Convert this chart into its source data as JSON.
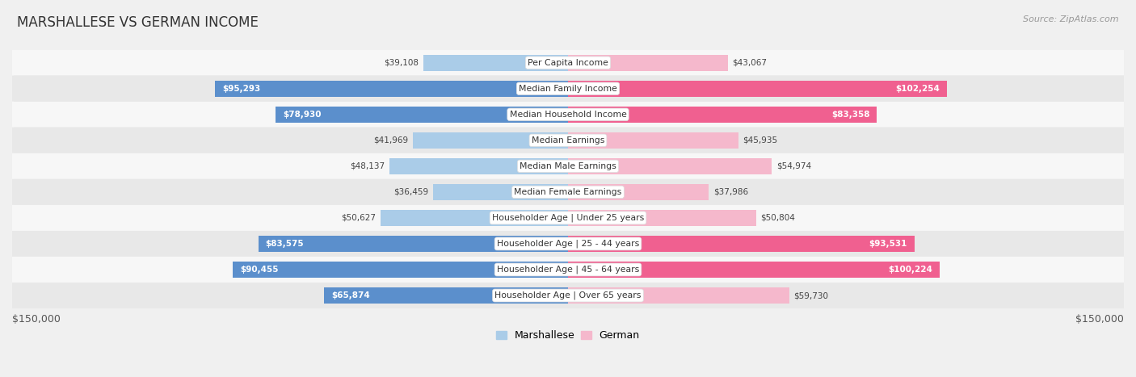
{
  "title": "MARSHALLESE VS GERMAN INCOME",
  "source": "Source: ZipAtlas.com",
  "categories": [
    "Per Capita Income",
    "Median Family Income",
    "Median Household Income",
    "Median Earnings",
    "Median Male Earnings",
    "Median Female Earnings",
    "Householder Age | Under 25 years",
    "Householder Age | 25 - 44 years",
    "Householder Age | 45 - 64 years",
    "Householder Age | Over 65 years"
  ],
  "marshallese": [
    39108,
    95293,
    78930,
    41969,
    48137,
    36459,
    50627,
    83575,
    90455,
    65874
  ],
  "german": [
    43067,
    102254,
    83358,
    45935,
    54974,
    37986,
    50804,
    93531,
    100224,
    59730
  ],
  "marshallese_labels": [
    "$39,108",
    "$95,293",
    "$78,930",
    "$41,969",
    "$48,137",
    "$36,459",
    "$50,627",
    "$83,575",
    "$90,455",
    "$65,874"
  ],
  "german_labels": [
    "$43,067",
    "$102,254",
    "$83,358",
    "$45,935",
    "$54,974",
    "$37,986",
    "$50,804",
    "$93,531",
    "$100,224",
    "$59,730"
  ],
  "max_val": 150000,
  "blue_light": "#aacce8",
  "blue_dark": "#5b8fcc",
  "pink_light": "#f5b8cc",
  "pink_dark": "#f06090",
  "bg_color": "#f0f0f0",
  "row_bg_even": "#f7f7f7",
  "row_bg_odd": "#e8e8e8",
  "label_threshold": 60000,
  "x_label_left": "$150,000",
  "x_label_right": "$150,000",
  "legend_marshallese": "Marshallese",
  "legend_german": "German"
}
